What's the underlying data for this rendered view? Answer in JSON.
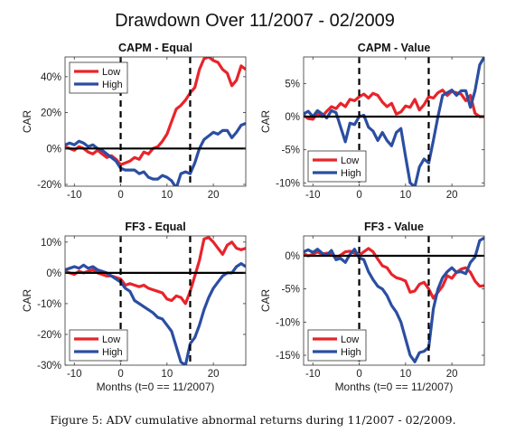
{
  "figure": {
    "title": "Drawdown Over 11/2007 - 02/2009",
    "caption": "Figure 5: ADV cumulative abnormal returns during 11/2007 - 02/2009."
  },
  "colors": {
    "low": "#e8242b",
    "high": "#2b4ea2",
    "zero_line": "#000000",
    "event_line": "#000000"
  },
  "chart_data": [
    {
      "type": "line",
      "title": "CAPM - Equal",
      "xlabel": "",
      "ylabel": "CAR",
      "xlim": [
        -12,
        27
      ],
      "ylim": [
        -21,
        51
      ],
      "xticks": [
        -10,
        0,
        10,
        20
      ],
      "yticks": [
        -20,
        0,
        20,
        40
      ],
      "ytick_labels": [
        "-20%",
        "0%",
        "20%",
        "40%"
      ],
      "event_lines": [
        0,
        15
      ],
      "legend_position": "top-left",
      "series": [
        {
          "name": "Low",
          "x": [
            -12,
            -11,
            -10,
            -9,
            -8,
            -7,
            -6,
            -5,
            -4,
            -3,
            -2,
            -1,
            0,
            1,
            2,
            3,
            4,
            5,
            6,
            7,
            8,
            9,
            10,
            11,
            12,
            13,
            14,
            15,
            16,
            17,
            18,
            19,
            20,
            21,
            22,
            23,
            24,
            25,
            26,
            27
          ],
          "y": [
            1,
            0,
            -1,
            1,
            0,
            -2,
            -3,
            -1,
            -3,
            -5,
            -4,
            -6,
            -9,
            -8,
            -7,
            -5,
            -6,
            -2,
            -3,
            0,
            1,
            4,
            8,
            15,
            22,
            24,
            27,
            31,
            34,
            44,
            50,
            51,
            49,
            48,
            44,
            42,
            35,
            38,
            46,
            44
          ]
        },
        {
          "name": "High",
          "x": [
            -12,
            -11,
            -10,
            -9,
            -8,
            -7,
            -6,
            -5,
            -4,
            -3,
            -2,
            -1,
            0,
            1,
            2,
            3,
            4,
            5,
            6,
            7,
            8,
            9,
            10,
            11,
            12,
            13,
            14,
            15,
            16,
            17,
            18,
            19,
            20,
            21,
            22,
            23,
            24,
            25,
            26,
            27
          ],
          "y": [
            2,
            3,
            2,
            4,
            3,
            1,
            2,
            0,
            -1,
            -3,
            -5,
            -7,
            -11,
            -12,
            -12,
            -12,
            -14,
            -13,
            -16,
            -17,
            -17,
            -15,
            -16,
            -18,
            -22,
            -14,
            -13,
            -14,
            -8,
            0,
            5,
            7,
            9,
            8,
            10,
            10,
            6,
            9,
            13,
            14
          ]
        }
      ]
    },
    {
      "type": "line",
      "title": "CAPM - Value",
      "xlabel": "",
      "ylabel": "CAR",
      "xlim": [
        -12,
        27
      ],
      "ylim": [
        -10.5,
        9
      ],
      "xticks": [
        -10,
        0,
        10,
        20
      ],
      "yticks": [
        -10,
        -5,
        0,
        5
      ],
      "ytick_labels": [
        "-10%",
        "-5%",
        "0%",
        "5%"
      ],
      "event_lines": [
        0,
        15
      ],
      "legend_position": "bottom-left",
      "series": [
        {
          "name": "Low",
          "x": [
            -12,
            -11,
            -10,
            -9,
            -8,
            -7,
            -6,
            -5,
            -4,
            -3,
            -2,
            -1,
            0,
            1,
            2,
            3,
            4,
            5,
            6,
            7,
            8,
            9,
            10,
            11,
            12,
            13,
            14,
            15,
            16,
            17,
            18,
            19,
            20,
            21,
            22,
            23,
            24,
            25,
            26,
            27
          ],
          "y": [
            0.2,
            -0.3,
            -0.4,
            0.5,
            0,
            0.8,
            1.5,
            1.2,
            2,
            1.5,
            2.6,
            2.4,
            3,
            3.4,
            2.8,
            3.5,
            3.2,
            2.2,
            1.5,
            2,
            0.4,
            0.7,
            1.6,
            1.4,
            2.6,
            1,
            1.8,
            3,
            2.8,
            3.6,
            4,
            3.2,
            3.8,
            3.6,
            3.4,
            2.4,
            3.2,
            0.5,
            0,
            0
          ]
        },
        {
          "name": "High",
          "x": [
            -12,
            -11,
            -10,
            -9,
            -8,
            -7,
            -6,
            -5,
            -4,
            -3,
            -2,
            -1,
            0,
            1,
            2,
            3,
            4,
            5,
            6,
            7,
            8,
            9,
            10,
            11,
            12,
            13,
            14,
            15,
            16,
            17,
            18,
            19,
            20,
            21,
            22,
            23,
            24,
            25,
            26,
            27
          ],
          "y": [
            0.4,
            0.8,
            0,
            0.9,
            0.4,
            -0.2,
            0.9,
            0.6,
            -1.6,
            -3.8,
            -1,
            -1.2,
            0,
            0.2,
            -1.6,
            -2.2,
            -3.6,
            -2.4,
            -3.6,
            -4.4,
            -2.4,
            -1.8,
            -6,
            -10,
            -10.6,
            -7.6,
            -6.4,
            -7,
            -3.6,
            0,
            3.2,
            3.6,
            4,
            3.2,
            3.9,
            3.9,
            1.4,
            3.9,
            7.8,
            9
          ]
        }
      ]
    },
    {
      "type": "line",
      "title": "FF3 - Equal",
      "xlabel": "Months (t=0 == 11/2007)",
      "ylabel": "CAR",
      "xlim": [
        -12,
        27
      ],
      "ylim": [
        -30,
        12
      ],
      "xticks": [
        -10,
        0,
        10,
        20
      ],
      "yticks": [
        -30,
        -20,
        -10,
        0,
        10
      ],
      "ytick_labels": [
        "-30%",
        "-20%",
        "-10%",
        "0%",
        "10%"
      ],
      "event_lines": [
        0,
        15
      ],
      "legend_position": "bottom-left",
      "series": [
        {
          "name": "Low",
          "x": [
            -12,
            -11,
            -10,
            -9,
            -8,
            -7,
            -6,
            -5,
            -4,
            -3,
            -2,
            -1,
            0,
            1,
            2,
            3,
            4,
            5,
            6,
            7,
            8,
            9,
            10,
            11,
            12,
            13,
            14,
            15,
            16,
            17,
            18,
            19,
            20,
            21,
            22,
            23,
            24,
            25,
            26,
            27
          ],
          "y": [
            0.5,
            0,
            -0.5,
            0.5,
            0,
            0.5,
            1,
            0,
            -0.5,
            -1,
            -1,
            -1.5,
            -2,
            -4,
            -3.5,
            -4,
            -4.5,
            -4,
            -5,
            -5.5,
            -6,
            -6.5,
            -8.5,
            -9,
            -7.5,
            -8,
            -10,
            -6,
            -1,
            4,
            11,
            11.5,
            10,
            8,
            6,
            9,
            10,
            8,
            7.5,
            8
          ]
        },
        {
          "name": "High",
          "x": [
            -12,
            -11,
            -10,
            -9,
            -8,
            -7,
            -6,
            -5,
            -4,
            -3,
            -2,
            -1,
            0,
            1,
            2,
            3,
            4,
            5,
            6,
            7,
            8,
            9,
            10,
            11,
            12,
            13,
            14,
            15,
            16,
            17,
            18,
            19,
            20,
            21,
            22,
            23,
            24,
            25,
            26,
            27
          ],
          "y": [
            1,
            1.5,
            2,
            1.5,
            2.5,
            1.5,
            2,
            1,
            0.5,
            0,
            -1,
            -2,
            -3,
            -5,
            -6,
            -9,
            -10,
            -11,
            -12,
            -13,
            -14.5,
            -15,
            -17,
            -19,
            -24,
            -29,
            -30,
            -23,
            -21,
            -17,
            -12,
            -8,
            -5,
            -3,
            -1,
            0,
            0,
            2,
            3,
            2
          ]
        }
      ]
    },
    {
      "type": "line",
      "title": "FF3 - Value",
      "xlabel": "Months (t=0 == 11/2007)",
      "ylabel": "CAR",
      "xlim": [
        -12,
        27
      ],
      "ylim": [
        -16.5,
        3
      ],
      "xticks": [
        -10,
        0,
        10,
        20
      ],
      "yticks": [
        -15,
        -10,
        -5,
        0
      ],
      "ytick_labels": [
        "-15%",
        "-10%",
        "-5%",
        "0%"
      ],
      "event_lines": [
        0,
        15
      ],
      "legend_position": "bottom-left",
      "series": [
        {
          "name": "Low",
          "x": [
            -12,
            -11,
            -10,
            -9,
            -8,
            -7,
            -6,
            -5,
            -4,
            -3,
            -2,
            -1,
            0,
            1,
            2,
            3,
            4,
            5,
            6,
            7,
            8,
            9,
            10,
            11,
            12,
            13,
            14,
            15,
            16,
            17,
            18,
            19,
            20,
            21,
            22,
            23,
            24,
            25,
            26,
            27
          ],
          "y": [
            0.3,
            0,
            0.2,
            0.6,
            0.2,
            0.4,
            0.2,
            -0.3,
            0.1,
            0.6,
            0.7,
            0.4,
            0.1,
            0.6,
            1.1,
            0.6,
            -0.5,
            -1.5,
            -1.8,
            -2.8,
            -3.3,
            -3.5,
            -3.8,
            -5.5,
            -5.3,
            -4.3,
            -4,
            -5,
            -6.4,
            -5.5,
            -4.6,
            -3,
            -3.4,
            -2.5,
            -2,
            -1.8,
            -2.5,
            -3.8,
            -4.6,
            -4.5
          ]
        },
        {
          "name": "High",
          "x": [
            -12,
            -11,
            -10,
            -9,
            -8,
            -7,
            -6,
            -5,
            -4,
            -3,
            -2,
            -1,
            0,
            1,
            2,
            3,
            4,
            5,
            6,
            7,
            8,
            9,
            10,
            11,
            12,
            13,
            14,
            15,
            16,
            17,
            18,
            19,
            20,
            21,
            22,
            23,
            24,
            25,
            26,
            27
          ],
          "y": [
            0.6,
            0.9,
            0.5,
            1,
            0.4,
            0.1,
            0.8,
            -0.6,
            -0.4,
            -1,
            0.2,
            1,
            -0.3,
            -0.6,
            -2.4,
            -3.6,
            -4.6,
            -5,
            -6,
            -7.5,
            -8.5,
            -10,
            -12.5,
            -15,
            -16,
            -14.6,
            -14.4,
            -13.8,
            -8,
            -5,
            -3.3,
            -2.4,
            -1.8,
            -2.5,
            -2.4,
            -2.7,
            -1,
            -0.2,
            2.3,
            2.7
          ]
        }
      ]
    }
  ]
}
